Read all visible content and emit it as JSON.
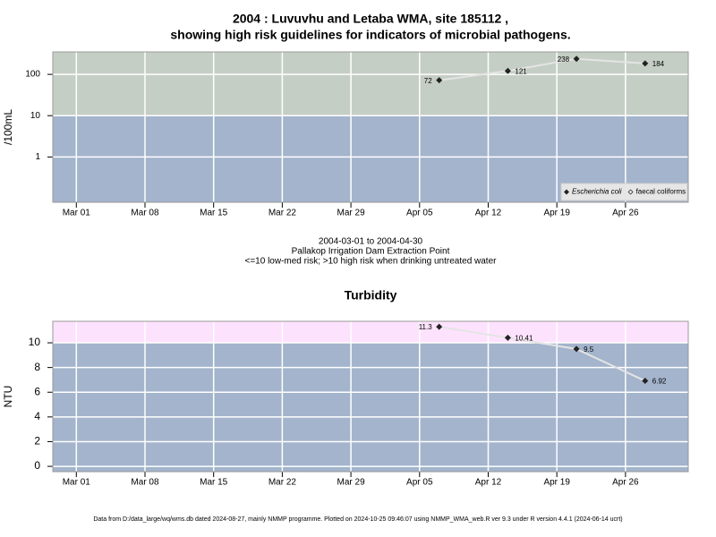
{
  "chart_data": [
    {
      "type": "line",
      "log_y": true,
      "title": [
        "2004 : Luvuvhu and Letaba WMA, site 185112 ,",
        "showing high risk guidelines for indicators of microbial pathogens."
      ],
      "caption": [
        "2004-03-01 to 2004-04-30",
        "Pallakop Irrigation Dam Extraction Point",
        "<=10 low-med risk; >10 high risk when drinking untreated water"
      ],
      "ylabel": "/100mL",
      "x": [
        "2004-04-07",
        "2004-04-14",
        "2004-04-21",
        "2004-04-28"
      ],
      "series": [
        {
          "name": "Escherichia coli",
          "color": "#222222",
          "values": [
            72,
            121,
            238,
            184
          ]
        },
        {
          "name": "faecal coliforms",
          "color": "#222222",
          "values": [
            null,
            null,
            null,
            null
          ]
        }
      ],
      "xlim": [
        "2004-02-27T14:24:00Z",
        "2004-05-02T09:36:00Z"
      ],
      "xticks": [
        {
          "value": "2004-03-01",
          "label": "Mar 01"
        },
        {
          "value": "2004-03-08",
          "label": "Mar 08"
        },
        {
          "value": "2004-03-15",
          "label": "Mar 15"
        },
        {
          "value": "2004-03-22",
          "label": "Mar 22"
        },
        {
          "value": "2004-03-29",
          "label": "Mar 29"
        },
        {
          "value": "2004-04-05",
          "label": "Apr 05"
        },
        {
          "value": "2004-04-12",
          "label": "Apr 12"
        },
        {
          "value": "2004-04-19",
          "label": "Apr 19"
        },
        {
          "value": "2004-04-26",
          "label": "Apr 26"
        }
      ],
      "ylim": [
        0.08,
        350
      ],
      "yticks": [
        1,
        10,
        100
      ],
      "guideline": 10,
      "band_colors": {
        "above": "#c5cec5",
        "below": "#a3b4cc"
      },
      "grid": true,
      "legend": "bottom-right"
    },
    {
      "type": "line",
      "log_y": false,
      "title": [
        "Turbidity"
      ],
      "ylabel": "NTU",
      "x": [
        "2004-04-07",
        "2004-04-14",
        "2004-04-21",
        "2004-04-28"
      ],
      "series": [
        {
          "name": "Turbidity",
          "color": "#222222",
          "values": [
            11.3,
            10.41,
            9.5,
            6.92
          ]
        }
      ],
      "xlim": [
        "2004-02-27T14:24:00Z",
        "2004-05-02T09:36:00Z"
      ],
      "xticks": [
        {
          "value": "2004-03-01",
          "label": "Mar 01"
        },
        {
          "value": "2004-03-08",
          "label": "Mar 08"
        },
        {
          "value": "2004-03-15",
          "label": "Mar 15"
        },
        {
          "value": "2004-03-22",
          "label": "Mar 22"
        },
        {
          "value": "2004-03-29",
          "label": "Mar 29"
        },
        {
          "value": "2004-04-05",
          "label": "Apr 05"
        },
        {
          "value": "2004-04-12",
          "label": "Apr 12"
        },
        {
          "value": "2004-04-19",
          "label": "Apr 19"
        },
        {
          "value": "2004-04-26",
          "label": "Apr 26"
        }
      ],
      "ylim": [
        -0.43,
        11.74
      ],
      "yticks": [
        0,
        2,
        4,
        6,
        8,
        10
      ],
      "guideline": 10,
      "band_colors": {
        "above": "#fde2fd",
        "below": "#a3b4cc"
      },
      "grid": true
    }
  ],
  "footer": "Data from D:/data_large/wq/wms.db dated 2024-08-27, mainly NMMP programme. Plotted on 2024-10-25 09:46:07 using NMMP_WMA_web.R ver 9.3 under R version 4.4.1 (2024-06-14 ucrt)"
}
